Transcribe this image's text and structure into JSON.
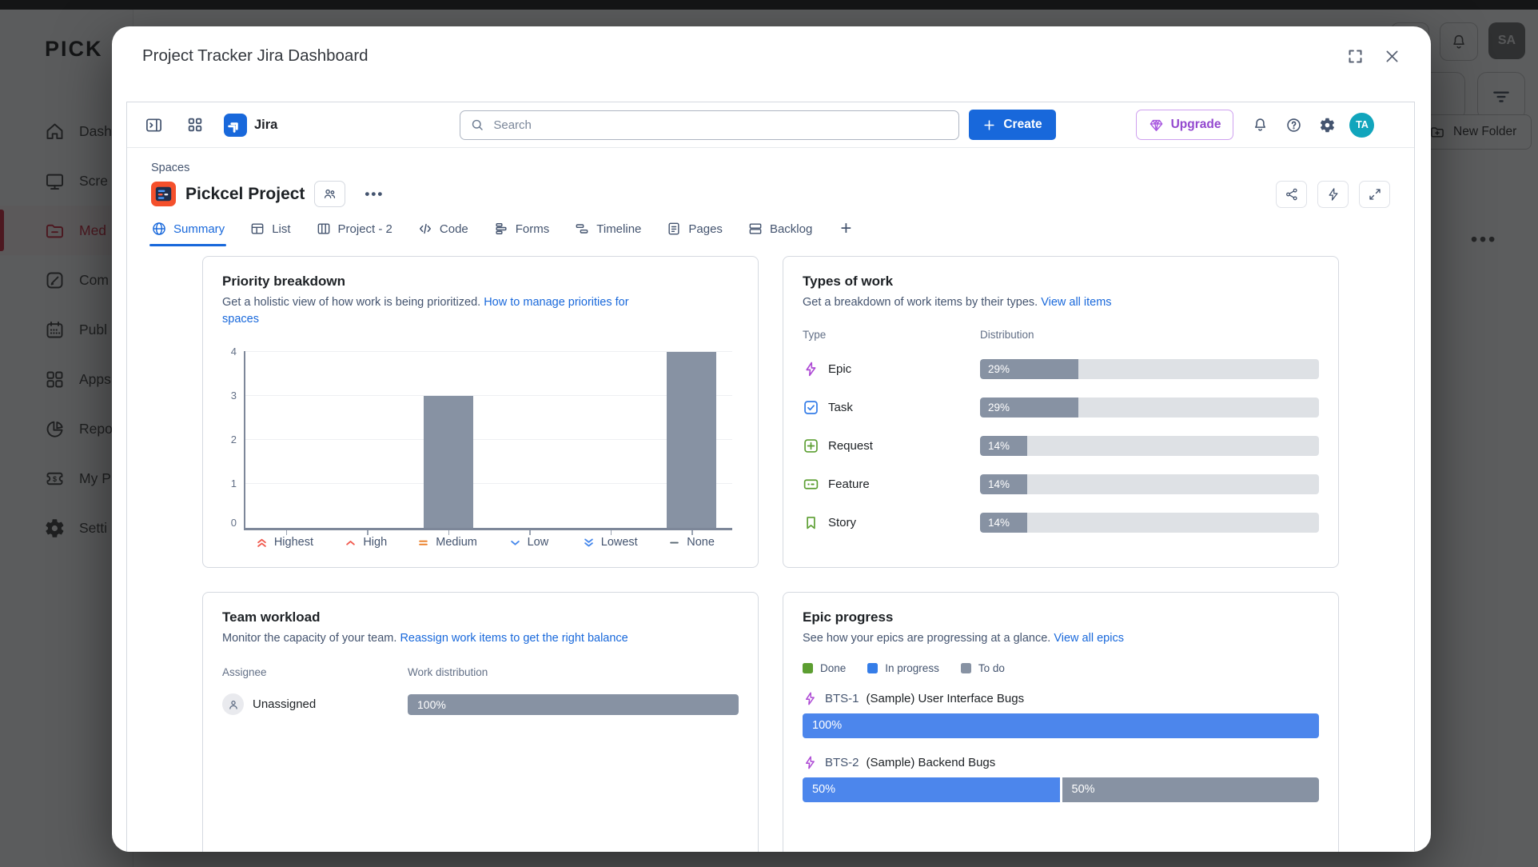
{
  "background": {
    "logo_text": "PICK",
    "sidebar_items": [
      {
        "label": "Dash",
        "icon": "home"
      },
      {
        "label": "Scre",
        "icon": "monitor"
      },
      {
        "label": "Med",
        "icon": "media-folder",
        "active": true
      },
      {
        "label": "Com",
        "icon": "compose"
      },
      {
        "label": "Publ",
        "icon": "calendar"
      },
      {
        "label": "Apps",
        "icon": "apps-grid"
      },
      {
        "label": "Repo",
        "icon": "pie-chart"
      },
      {
        "label": "My P",
        "icon": "plan-ticket"
      },
      {
        "label": "Setti",
        "icon": "gear"
      }
    ],
    "top_right": {
      "help_label": "?",
      "avatar_initials": "SA"
    },
    "new_folder_label": "New Folder"
  },
  "modal": {
    "title": "Project Tracker Jira Dashboard"
  },
  "jira": {
    "nav": {
      "app_name": "Jira",
      "search_placeholder": "Search",
      "create_label": "Create",
      "upgrade_label": "Upgrade",
      "avatar_initials": "TA"
    },
    "breadcrumb": "Spaces",
    "project_name": "Pickcel Project",
    "tabs": [
      {
        "label": "Summary"
      },
      {
        "label": "List"
      },
      {
        "label": "Project - 2"
      },
      {
        "label": "Code"
      },
      {
        "label": "Forms"
      },
      {
        "label": "Timeline"
      },
      {
        "label": "Pages"
      },
      {
        "label": "Backlog"
      }
    ],
    "priority_card": {
      "title": "Priority breakdown",
      "desc_text": "Get a holistic view of how work is being prioritized. ",
      "link_text": "How to manage priorities for spaces",
      "y_ticks": [
        "4",
        "3",
        "2",
        "1",
        "0"
      ],
      "x_labels": [
        "Highest",
        "High",
        "Medium",
        "Low",
        "Lowest",
        "None"
      ]
    },
    "types_card": {
      "title": "Types of work",
      "desc_text": "Get a breakdown of work items by their types. ",
      "link_text": "View all items",
      "col_type": "Type",
      "col_distribution": "Distribution",
      "rows": [
        {
          "label": "Epic",
          "pct": "29%",
          "value": 29
        },
        {
          "label": "Task",
          "pct": "29%",
          "value": 29
        },
        {
          "label": "Request",
          "pct": "14%",
          "value": 14
        },
        {
          "label": "Feature",
          "pct": "14%",
          "value": 14
        },
        {
          "label": "Story",
          "pct": "14%",
          "value": 14
        }
      ]
    },
    "workload_card": {
      "title": "Team workload",
      "desc_text": "Monitor the capacity of your team. ",
      "link_text": "Reassign work items to get the right balance",
      "col_assignee": "Assignee",
      "col_distribution": "Work distribution",
      "rows": [
        {
          "assignee": "Unassigned",
          "pct": "100%",
          "value": 100
        }
      ]
    },
    "epic_card": {
      "title": "Epic progress",
      "desc_text": "See how your epics are progressing at a glance. ",
      "link_text": "View all epics",
      "legend": [
        {
          "label": "Done",
          "color": "#5c9e31"
        },
        {
          "label": "In progress",
          "color": "#357de8"
        },
        {
          "label": "To do",
          "color": "#8792a3"
        }
      ],
      "rows": [
        {
          "key": "BTS-1",
          "name": "(Sample) User Interface Bugs",
          "segments": [
            {
              "pct": "100%",
              "value": 100,
              "color": "#4c86ec"
            }
          ]
        },
        {
          "key": "BTS-2",
          "name": "(Sample) Backend Bugs",
          "segments": [
            {
              "pct": "50%",
              "value": 50,
              "color": "#4c86ec"
            },
            {
              "pct": "50%",
              "value": 50,
              "color": "#8792a3"
            }
          ]
        }
      ]
    }
  },
  "chart_data": [
    {
      "type": "bar",
      "title": "Priority breakdown",
      "categories": [
        "Highest",
        "High",
        "Medium",
        "Low",
        "Lowest",
        "None"
      ],
      "values": [
        0,
        0,
        3,
        0,
        0,
        4
      ],
      "xlabel": "",
      "ylabel": "",
      "ylim": [
        0,
        4
      ],
      "y_ticks": [
        0,
        1,
        2,
        3,
        4
      ],
      "grid": true,
      "bar_color": "#8792a3",
      "legend_position": "none"
    },
    {
      "type": "bar",
      "title": "Types of work - Distribution",
      "categories": [
        "Epic",
        "Task",
        "Request",
        "Feature",
        "Story"
      ],
      "values": [
        29,
        29,
        14,
        14,
        14
      ],
      "unit": "%",
      "xlim": [
        0,
        100
      ]
    },
    {
      "type": "bar",
      "title": "Team workload - Work distribution",
      "categories": [
        "Unassigned"
      ],
      "values": [
        100
      ],
      "unit": "%",
      "xlim": [
        0,
        100
      ]
    },
    {
      "type": "bar",
      "title": "Epic progress",
      "categories": [
        "BTS-1 (Sample) User Interface Bugs",
        "BTS-2 (Sample) Backend Bugs"
      ],
      "series": [
        {
          "name": "In progress",
          "values": [
            100,
            50
          ]
        },
        {
          "name": "To do",
          "values": [
            0,
            50
          ]
        }
      ],
      "unit": "%",
      "xlim": [
        0,
        100
      ],
      "legend_position": "top"
    }
  ]
}
